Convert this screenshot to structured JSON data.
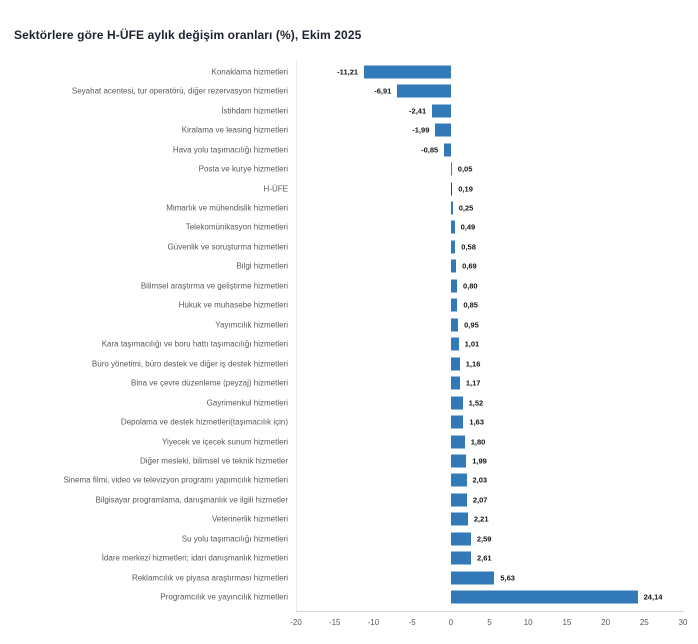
{
  "chart_data": {
    "type": "bar",
    "orientation": "horizontal",
    "title": "Sektörlere göre H-ÜFE aylık değişim oranları (%), Ekim 2025",
    "categories": [
      "Konaklama hizmetleri",
      "Seyahat acentesi, tur operatörü, diğer rezervasyon hizmetleri",
      "İstihdam hizmetleri",
      "Kiralama ve leasing hizmetleri",
      "Hava yolu taşımacılığı hizmetleri",
      "Posta ve kurye hizmetleri",
      "H-ÜFE",
      "Mimarlık ve mühendislik hizmetleri",
      "Telekomünikasyon hizmetleri",
      "Güvenlik ve soruşturma hizmetleri",
      "Bilgi hizmetleri",
      "Bilimsel araştırma ve geliştirme hizmetleri",
      "Hukuk ve muhasebe hizmetleri",
      "Yayımcılık hizmetleri",
      "Kara taşımacılığı ve boru hattı taşımacılığı hizmetleri",
      "Büro yönetimi, büro destek ve diğer iş destek hizmetleri",
      "Bina ve çevre düzenleme (peyzaj) hizmetleri",
      "Gayrimenkul hizmetleri",
      "Depolama ve destek hizmetleri(taşımacılık için)",
      "Yiyecek ve içecek sunum hizmetleri",
      "Diğer mesleki, bilimsel ve teknik hizmetler",
      "Sinema filmi, video ve televizyon programı yapımcılık hizmetleri",
      "Bilgisayar programlama, danışmanlık ve ilgili hizmetler",
      "Veterinerlik hizmetleri",
      "Su yolu taşımacılığı hizmetleri",
      "İdare merkezi hizmetleri; idari danışmanlık hizmetleri",
      "Reklamcılık ve piyasa araştırması hizmetleri",
      "Programcılık ve yayıncılık hizmetleri"
    ],
    "values": [
      -11.21,
      -6.91,
      -2.41,
      -1.99,
      -0.85,
      0.05,
      0.19,
      0.25,
      0.49,
      0.58,
      0.69,
      0.8,
      0.85,
      0.95,
      1.01,
      1.16,
      1.17,
      1.52,
      1.63,
      1.8,
      1.99,
      2.03,
      2.07,
      2.21,
      2.59,
      2.61,
      5.63,
      24.14
    ],
    "value_labels": [
      "-11,21",
      "-6,91",
      "-2,41",
      "-1,99",
      "-0,85",
      "0,05",
      "0,19",
      "0,25",
      "0,49",
      "0,58",
      "0,69",
      "0,80",
      "0,85",
      "0,95",
      "1,01",
      "1,16",
      "1,17",
      "1,52",
      "1,63",
      "1,80",
      "1,99",
      "2,03",
      "2,07",
      "2,21",
      "2,59",
      "2,61",
      "5,63",
      "24,14"
    ],
    "highlight_category": "H-ÜFE",
    "xlim": [
      -20,
      30
    ],
    "x_ticks": [
      -20,
      -15,
      -10,
      -5,
      0,
      5,
      10,
      15,
      20,
      25,
      30
    ],
    "x_tick_labels": [
      "-20",
      "-15",
      "-10",
      "-5",
      "0",
      "5",
      "10",
      "15",
      "20",
      "25",
      "30"
    ],
    "grid": false,
    "legend": false,
    "xlabel": "",
    "ylabel": ""
  },
  "colors": {
    "bar": "#3279b7",
    "highlight": "#c00000",
    "category_label": "#595959",
    "value_label": "#141414",
    "axis_line": "#d4d4d4",
    "plot_border": "#ececec",
    "title": "#1e2230"
  }
}
